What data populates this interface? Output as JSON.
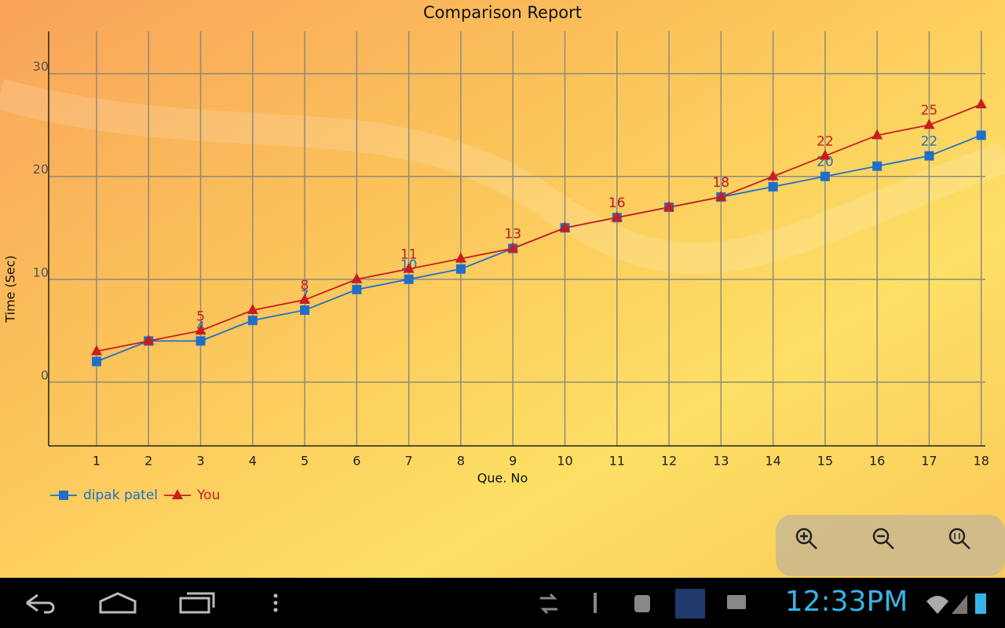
{
  "chart_data": {
    "type": "line",
    "title": "Comparison Report",
    "x_label": "Que. No",
    "y_label": "Time (Sec)",
    "x": [
      1,
      2,
      3,
      4,
      5,
      6,
      7,
      8,
      9,
      10,
      11,
      12,
      13,
      14,
      15,
      16,
      17,
      18
    ],
    "series": [
      {
        "name": "dipak patel",
        "color": "#1f6fc9",
        "marker": "square",
        "values": [
          2,
          4,
          4,
          6,
          7,
          9,
          10,
          11,
          13,
          15,
          16,
          17,
          18,
          19,
          20,
          21,
          22,
          24
        ]
      },
      {
        "name": "You",
        "color": "#c81e1e",
        "marker": "triangle",
        "values": [
          3,
          4,
          5,
          7,
          8,
          10,
          11,
          12,
          13,
          15,
          16,
          17,
          18,
          20,
          22,
          24,
          25,
          27
        ]
      }
    ],
    "xlim": [
      0.08,
      18.08
    ],
    "ylim": [
      -6.2,
      34.1
    ],
    "xticks": [
      1,
      2,
      3,
      4,
      5,
      6,
      7,
      8,
      9,
      10,
      11,
      12,
      13,
      14,
      15,
      16,
      17,
      18
    ],
    "yticks": [
      0,
      10,
      20,
      30
    ],
    "grid": true,
    "legend": "bottom-left"
  },
  "status_bar": {
    "time": "12:33PM"
  }
}
